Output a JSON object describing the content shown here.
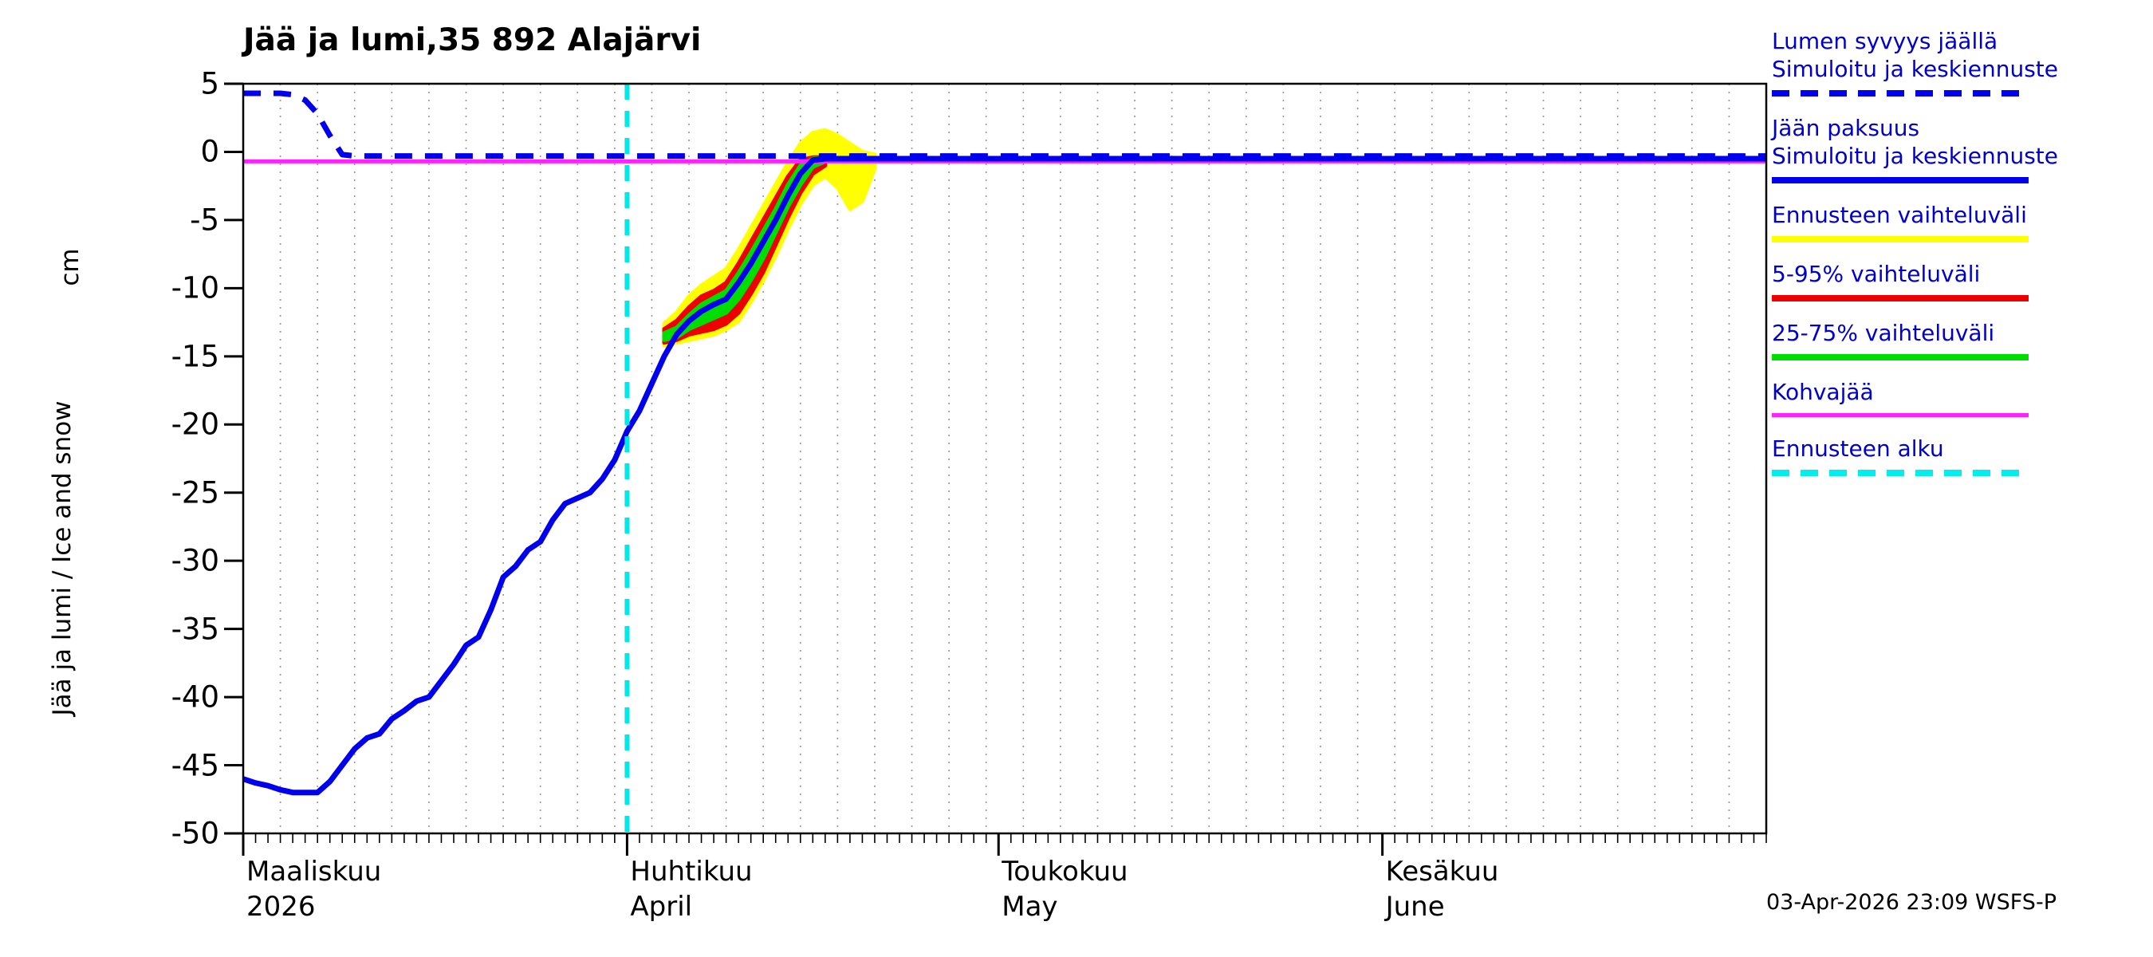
{
  "chart_data": {
    "type": "line",
    "title": "Jää ja lumi,35 892 Alajärvi",
    "ylabel": "Jää ja lumi / Ice and snow",
    "ylabel_unit": "cm",
    "ylim": [
      -50,
      5
    ],
    "y_ticks": [
      5,
      0,
      -5,
      -10,
      -15,
      -20,
      -25,
      -30,
      -35,
      -40,
      -45,
      -50
    ],
    "x_unit": "days since 1 March 2026",
    "x_range": [
      0,
      123
    ],
    "grid": "vertical dotted every 3 days",
    "forecast_start_day": 31,
    "months": [
      {
        "label": "Maaliskuu",
        "sublabel": "2026",
        "day": 0
      },
      {
        "label": "Huhtikuu",
        "sublabel": "April",
        "day": 31
      },
      {
        "label": "Toukokuu",
        "sublabel": "May",
        "day": 61
      },
      {
        "label": "Kesäkuu",
        "sublabel": "June",
        "day": 92
      }
    ],
    "bands": [
      {
        "id": "ennusteen-vaihteluvali",
        "name": "Ennusteen vaihteluväli",
        "color": "#ffff00",
        "points": [
          [
            34,
            -14.2,
            -12.6
          ],
          [
            35,
            -14.0,
            -11.8
          ],
          [
            36,
            -13.8,
            -10.6
          ],
          [
            37,
            -13.6,
            -9.8
          ],
          [
            38,
            -13.4,
            -9.2
          ],
          [
            39,
            -13.0,
            -8.6
          ],
          [
            40,
            -12.4,
            -7.2
          ],
          [
            41,
            -11.0,
            -5.6
          ],
          [
            42,
            -9.4,
            -4.0
          ],
          [
            43,
            -7.6,
            -2.4
          ],
          [
            44,
            -5.6,
            -0.8
          ],
          [
            45,
            -3.8,
            0.6
          ],
          [
            46,
            -2.4,
            1.4
          ],
          [
            47,
            -1.8,
            1.6
          ],
          [
            48,
            -2.6,
            1.2
          ],
          [
            49,
            -4.2,
            0.6
          ],
          [
            50,
            -3.6,
            0.0
          ],
          [
            51,
            -1.2,
            -0.2
          ]
        ]
      },
      {
        "id": "5-95-vaihteluvali",
        "name": "5-95% vaihteluväli",
        "color": "#ee0000",
        "points": [
          [
            34,
            -14.0,
            -13.0
          ],
          [
            35,
            -13.8,
            -12.4
          ],
          [
            36,
            -13.4,
            -11.4
          ],
          [
            37,
            -13.2,
            -10.6
          ],
          [
            38,
            -13.0,
            -10.2
          ],
          [
            39,
            -12.6,
            -9.6
          ],
          [
            40,
            -11.8,
            -8.2
          ],
          [
            41,
            -10.4,
            -6.6
          ],
          [
            42,
            -8.8,
            -5.0
          ],
          [
            43,
            -6.8,
            -3.4
          ],
          [
            44,
            -4.8,
            -1.8
          ],
          [
            45,
            -3.0,
            -0.6
          ],
          [
            46,
            -1.6,
            -0.4
          ],
          [
            47,
            -1.0,
            -0.4
          ]
        ]
      },
      {
        "id": "25-75-vaihteluvali",
        "name": "25-75% vaihteluväli",
        "color": "#00dd00",
        "points": [
          [
            34,
            -13.8,
            -13.3
          ],
          [
            35,
            -13.6,
            -12.9
          ],
          [
            36,
            -13.0,
            -12.0
          ],
          [
            37,
            -12.6,
            -11.2
          ],
          [
            38,
            -12.2,
            -10.7
          ],
          [
            39,
            -11.8,
            -10.2
          ],
          [
            40,
            -10.8,
            -8.9
          ],
          [
            41,
            -9.4,
            -7.4
          ],
          [
            42,
            -7.8,
            -5.8
          ],
          [
            43,
            -5.9,
            -4.2
          ],
          [
            44,
            -4.0,
            -2.4
          ],
          [
            45,
            -2.4,
            -1.0
          ],
          [
            46,
            -1.1,
            -0.5
          ],
          [
            47,
            -0.7,
            -0.45
          ]
        ]
      }
    ],
    "series": [
      {
        "id": "kohvajaa",
        "name": "Kohvajää",
        "color": "#ff22ff",
        "style": "solid",
        "width": 5,
        "points": [
          [
            0,
            -0.7
          ],
          [
            123,
            -0.7
          ]
        ]
      },
      {
        "id": "lumen-syvyys-jaalla",
        "name": "Lumen syvyys jäällä — Simuloitu ja keskiennuste",
        "color": "#0000ee",
        "style": "dashed",
        "width": 7,
        "points": [
          [
            0,
            4.3
          ],
          [
            3,
            4.3
          ],
          [
            4,
            4.2
          ],
          [
            5,
            3.8
          ],
          [
            6,
            2.8
          ],
          [
            7,
            1.2
          ],
          [
            8,
            -0.2
          ],
          [
            9,
            -0.3
          ],
          [
            123,
            -0.3
          ]
        ]
      },
      {
        "id": "jaan-paksuus",
        "name": "Jään paksuus — Simuloitu ja keskiennuste",
        "color": "#0000ee",
        "style": "solid",
        "width": 7,
        "points": [
          [
            0,
            -46.0
          ],
          [
            1,
            -46.3
          ],
          [
            2,
            -46.5
          ],
          [
            3,
            -46.8
          ],
          [
            4,
            -47.0
          ],
          [
            6,
            -47.0
          ],
          [
            7,
            -46.2
          ],
          [
            8,
            -45.0
          ],
          [
            9,
            -43.8
          ],
          [
            10,
            -43.0
          ],
          [
            11,
            -42.7
          ],
          [
            12,
            -41.6
          ],
          [
            13,
            -41.0
          ],
          [
            14,
            -40.3
          ],
          [
            15,
            -40.0
          ],
          [
            16,
            -38.8
          ],
          [
            17,
            -37.6
          ],
          [
            18,
            -36.2
          ],
          [
            19,
            -35.6
          ],
          [
            20,
            -33.6
          ],
          [
            21,
            -31.2
          ],
          [
            22,
            -30.4
          ],
          [
            23,
            -29.2
          ],
          [
            24,
            -28.6
          ],
          [
            25,
            -27.0
          ],
          [
            26,
            -25.8
          ],
          [
            27,
            -25.4
          ],
          [
            28,
            -25.0
          ],
          [
            29,
            -24.0
          ],
          [
            30,
            -22.6
          ],
          [
            31,
            -20.5
          ],
          [
            32,
            -19.0
          ],
          [
            33,
            -17.0
          ],
          [
            34,
            -15.0
          ],
          [
            35,
            -13.4
          ],
          [
            36,
            -12.4
          ],
          [
            37,
            -11.7
          ],
          [
            38,
            -11.2
          ],
          [
            39,
            -10.8
          ],
          [
            40,
            -9.6
          ],
          [
            41,
            -8.2
          ],
          [
            42,
            -6.6
          ],
          [
            43,
            -5.0
          ],
          [
            44,
            -3.2
          ],
          [
            45,
            -1.6
          ],
          [
            46,
            -0.6
          ],
          [
            47,
            -0.5
          ],
          [
            123,
            -0.5
          ]
        ]
      }
    ]
  },
  "legend": {
    "items": [
      {
        "id": "lumen-syvyys-jaalla",
        "lines": [
          "Lumen syvyys jäällä",
          "Simuloitu ja keskiennuste"
        ],
        "color": "#0000ee",
        "dash": true,
        "thickness": 8
      },
      {
        "id": "jaan-paksuus",
        "lines": [
          "Jään paksuus",
          "Simuloitu ja keskiennuste"
        ],
        "color": "#0000ee",
        "dash": false,
        "thickness": 8
      },
      {
        "id": "ennusteen-vaihteluvali",
        "lines": [
          "Ennusteen vaihteluväli"
        ],
        "color": "#ffff00",
        "dash": false,
        "thickness": 8
      },
      {
        "id": "5-95-vaihteluvali",
        "lines": [
          "5-95% vaihteluväli"
        ],
        "color": "#ee0000",
        "dash": false,
        "thickness": 8
      },
      {
        "id": "25-75-vaihteluvali",
        "lines": [
          "25-75% vaihteluväli"
        ],
        "color": "#00dd00",
        "dash": false,
        "thickness": 8
      },
      {
        "id": "kohvajaa",
        "lines": [
          "Kohvajää"
        ],
        "color": "#ff22ff",
        "dash": false,
        "thickness": 5
      },
      {
        "id": "ennusteen-alku",
        "lines": [
          "Ennusteen alku"
        ],
        "color": "#00eeee",
        "dash": true,
        "thickness": 8
      }
    ]
  },
  "footer": {
    "datestamp": "03-Apr-2026 23:09 WSFS-P"
  }
}
